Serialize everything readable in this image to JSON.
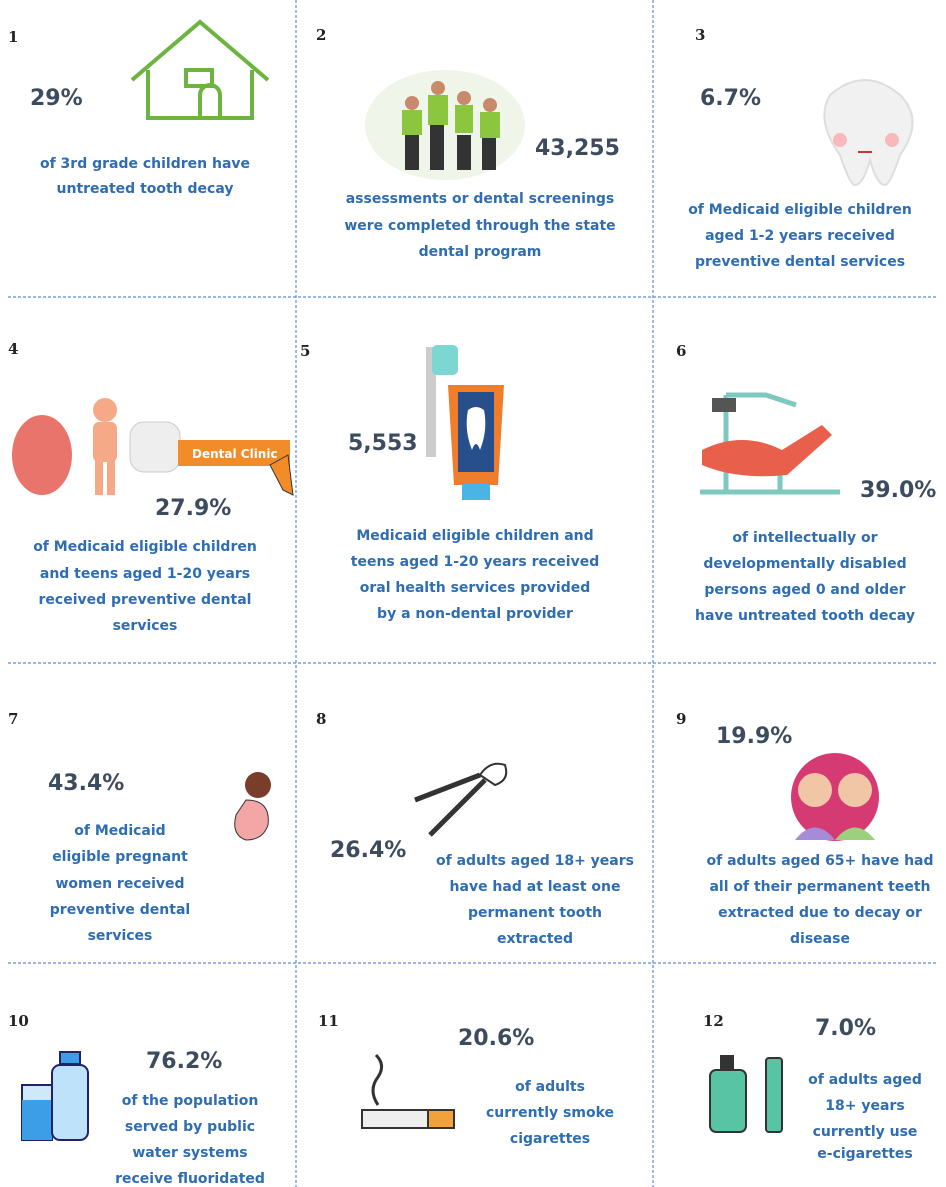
{
  "cells": [
    {
      "label": "1",
      "stat": "29%",
      "lines": [
        "of 3rd grade children have",
        "untreated tooth decay"
      ]
    },
    {
      "label": "2",
      "stat": "43,255",
      "lines": [
        "assessments or dental screenings",
        "were completed through the state",
        "dental program"
      ]
    },
    {
      "label": "3",
      "stat": "6.7%",
      "lines": [
        "of Medicaid eligible children",
        "aged 1-2 years received",
        "preventive dental services"
      ]
    },
    {
      "label": "4",
      "stat": "27.9%",
      "lines": [
        "of Medicaid eligible children",
        "and teens aged 1-20 years",
        "received preventive dental",
        "services"
      ],
      "sign": "Dental Clinic"
    },
    {
      "label": "5",
      "stat": "5,553",
      "lines": [
        "Medicaid eligible children and",
        "teens aged 1-20 years received",
        "oral health services provided",
        "by a non-dental provider"
      ]
    },
    {
      "label": "6",
      "stat": "39.0%",
      "lines": [
        "of intellectually or",
        "developmentally disabled",
        "persons aged 0 and older",
        "have untreated tooth decay"
      ]
    },
    {
      "label": "7",
      "stat": "43.4%",
      "lines": [
        "of Medicaid",
        "eligible pregnant",
        "women received",
        "preventive dental",
        "services"
      ]
    },
    {
      "label": "8",
      "stat": "26.4%",
      "lines": [
        "of adults aged 18+ years",
        "have had at least one",
        "permanent tooth",
        "extracted"
      ]
    },
    {
      "label": "9",
      "stat": "19.9%",
      "lines": [
        "of adults aged 65+ have had",
        "all of their permanent teeth",
        "extracted due to decay or",
        "disease"
      ]
    },
    {
      "label": "10",
      "stat": "76.2%",
      "lines": [
        "of the population",
        "served by public",
        "water systems",
        "receive fluoridated"
      ]
    },
    {
      "label": "11",
      "stat": "20.6%",
      "lines": [
        "of adults",
        "currently smoke",
        "cigarettes"
      ]
    },
    {
      "label": "12",
      "stat": "7.0%",
      "lines": [
        "of adults aged",
        "18+ years",
        "currently use",
        "e-cigarettes"
      ]
    }
  ]
}
